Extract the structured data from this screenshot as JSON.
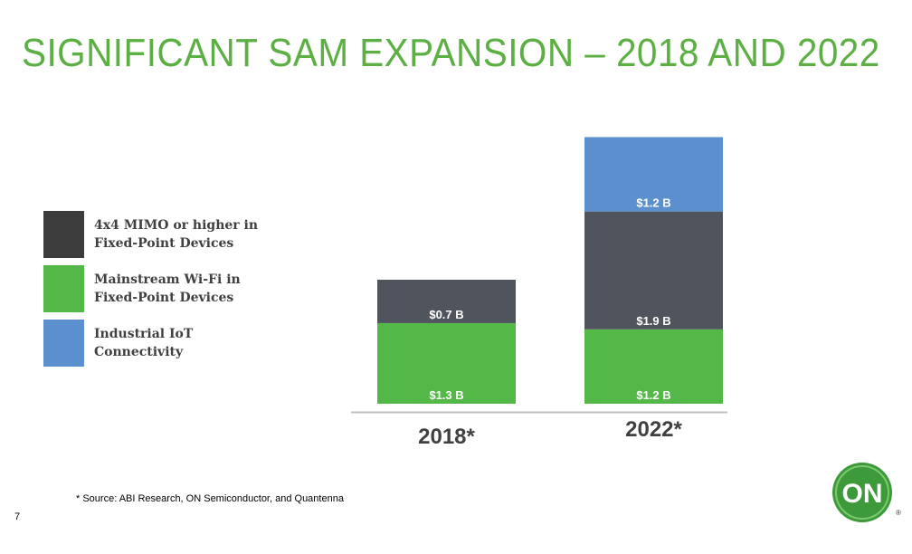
{
  "slide": {
    "title": "SIGNIFICANT SAM EXPANSION – 2018 AND 2022",
    "source_note": "* Source: ABI Research, ON Semiconductor, and Quantenna",
    "page_number": "7",
    "logo_text": "ON",
    "logo_registered": "®"
  },
  "colors": {
    "title": "#5cb043",
    "mimo": "#50545c",
    "mainstream": "#53b848",
    "iot": "#5b8fcd",
    "logo": "#3d9a3a"
  },
  "legend": [
    {
      "label": "4x4 MIMO or higher in\nFixed-Point Devices",
      "color": "#3c3c3c"
    },
    {
      "label": "Mainstream Wi-Fi in\nFixed-Point Devices",
      "color": "#53b848"
    },
    {
      "label": "Industrial IoT\nConnectivity",
      "color": "#5b8fcd"
    }
  ],
  "chart_data": {
    "type": "bar",
    "stacked": true,
    "categories": [
      "2018*",
      "2022*"
    ],
    "series": [
      {
        "name": "Mainstream Wi-Fi in Fixed-Point Devices",
        "values": [
          1.3,
          1.2
        ],
        "labels": [
          "$1.3 B",
          "$1.2 B"
        ],
        "color": "#53b848"
      },
      {
        "name": "4x4 MIMO or higher in Fixed-Point Devices",
        "values": [
          0.7,
          1.9
        ],
        "labels": [
          "$0.7 B",
          "$1.9 B"
        ],
        "color": "#50545c"
      },
      {
        "name": "Industrial IoT Connectivity",
        "values": [
          0,
          1.2
        ],
        "labels": [
          "",
          "$1.2 B"
        ],
        "color": "#5b8fcd"
      }
    ],
    "ylim": [
      0,
      4.3
    ],
    "units": "$ B",
    "grid": false
  }
}
